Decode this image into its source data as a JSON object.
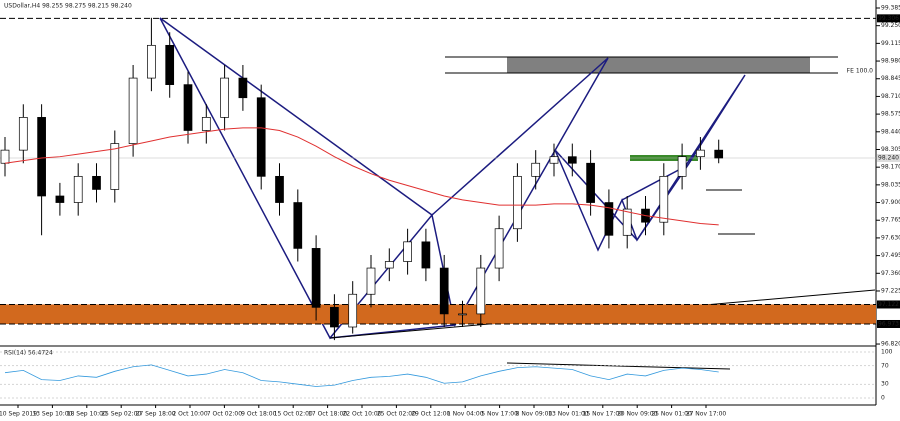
{
  "chart_data": {
    "type": "candlestick",
    "title": "USDollar,H4 98.255 98.275 98.215 98.240",
    "open": [
      98.2,
      98.3,
      98.55,
      97.95,
      97.9,
      98.1,
      98.0,
      98.35,
      98.85,
      99.1,
      98.8,
      98.45,
      98.55,
      98.85,
      98.7,
      98.1,
      97.9,
      97.55,
      97.1,
      96.95,
      97.2,
      97.4,
      97.45,
      97.6,
      97.4,
      97.05,
      97.05,
      97.4,
      97.7,
      98.1,
      98.2,
      98.25,
      98.2,
      97.9,
      97.65,
      97.85,
      97.75,
      98.1,
      98.25,
      98.3
    ],
    "high": [
      98.4,
      98.65,
      98.65,
      98.05,
      98.2,
      98.2,
      98.45,
      98.95,
      99.31,
      99.2,
      98.9,
      98.65,
      98.95,
      98.95,
      98.8,
      98.2,
      98.0,
      97.65,
      97.2,
      97.3,
      97.5,
      97.55,
      97.7,
      97.7,
      97.5,
      97.15,
      97.5,
      97.8,
      98.2,
      98.3,
      98.35,
      98.35,
      98.3,
      98.0,
      97.95,
      97.95,
      98.2,
      98.35,
      98.4,
      98.38
    ],
    "low": [
      98.1,
      98.2,
      97.65,
      97.8,
      97.8,
      97.9,
      97.9,
      98.25,
      98.75,
      98.7,
      98.35,
      98.35,
      98.45,
      98.6,
      98.0,
      97.8,
      97.45,
      97.0,
      96.85,
      96.9,
      97.1,
      97.3,
      97.35,
      97.3,
      96.95,
      96.95,
      96.95,
      97.3,
      97.6,
      98.0,
      98.1,
      98.1,
      97.8,
      97.55,
      97.55,
      97.65,
      97.65,
      98.0,
      98.15,
      98.2
    ],
    "close": [
      98.3,
      98.55,
      97.95,
      97.9,
      98.1,
      98.0,
      98.35,
      98.85,
      99.1,
      98.8,
      98.45,
      98.55,
      98.85,
      98.7,
      98.1,
      97.9,
      97.55,
      97.1,
      96.95,
      97.2,
      97.4,
      97.45,
      97.6,
      97.4,
      97.05,
      97.05,
      97.4,
      97.7,
      98.1,
      98.2,
      98.25,
      98.2,
      97.9,
      97.65,
      97.85,
      97.75,
      98.1,
      98.25,
      98.3,
      98.24
    ],
    "ma": [
      98.2,
      98.22,
      98.24,
      98.25,
      98.27,
      98.29,
      98.31,
      98.34,
      98.37,
      98.4,
      98.42,
      98.44,
      98.46,
      98.47,
      98.47,
      98.45,
      98.4,
      98.33,
      98.25,
      98.18,
      98.12,
      98.07,
      98.03,
      97.99,
      97.95,
      97.92,
      97.9,
      97.88,
      97.88,
      97.88,
      97.89,
      97.89,
      97.88,
      97.86,
      97.83,
      97.8,
      97.78,
      97.76,
      97.74,
      97.73
    ],
    "ma_color": "#e03030",
    "ylim": [
      96.805,
      99.446
    ],
    "yticks": [
      99.385,
      {
        "value": 99.25,
        "label": "99.250"
      },
      99.115,
      {
        "value": 98.98,
        "label": "98.980"
      },
      98.845,
      {
        "value": 98.71,
        "label": "98.710"
      },
      98.575,
      {
        "value": 98.44,
        "label": "98.440"
      },
      98.305,
      {
        "value": 98.17,
        "label": "98.170"
      },
      98.035,
      {
        "value": 97.9,
        "label": "97.900"
      },
      97.765,
      {
        "value": 97.63,
        "label": "97.630"
      },
      97.495,
      {
        "value": 97.36,
        "label": "97.360"
      },
      97.225,
      {
        "value": 96.82,
        "label": "96.820"
      }
    ],
    "levels": [
      99.306,
      {
        "value": 98.24,
        "label": "98.240"
      },
      97.122,
      96.973
    ],
    "fe_label": "FE 100.0",
    "x_labels": [
      "10 Sep 2019",
      "13 Sep 10:00",
      "18 Sep 10:00",
      "25 Sep 02:00",
      "27 Sep 18:00",
      "2 Oct 10:00",
      "7 Oct 02:00",
      "9 Oct 18:00",
      "15 Oct 02:00",
      "17 Oct 18:00",
      "22 Oct 10:00",
      "25 Oct 02:00",
      "29 Oct 12:00",
      "1 Nov 04:00",
      "5 Nov 17:00",
      "8 Nov 09:00",
      "13 Nov 01:00",
      "15 Nov 17:00",
      "20 Nov 09:00",
      "25 Nov 01:00",
      "27 Nov 17:00"
    ],
    "rsi": {
      "title": "RSI(14) 56.4724",
      "color": "#3399dd",
      "values": [
        55,
        60,
        40,
        38,
        48,
        45,
        58,
        68,
        72,
        60,
        48,
        52,
        62,
        55,
        38,
        35,
        30,
        25,
        28,
        38,
        45,
        47,
        52,
        45,
        32,
        35,
        48,
        58,
        66,
        68,
        65,
        62,
        48,
        40,
        52,
        48,
        60,
        65,
        62,
        56.47
      ],
      "ylim": [
        0,
        100
      ],
      "yticks": [
        100,
        70,
        30,
        0
      ]
    }
  }
}
